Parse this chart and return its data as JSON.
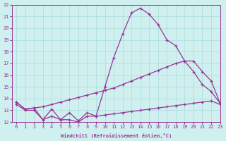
{
  "xlabel": "Windchill (Refroidissement éolien,°C)",
  "xlim": [
    -0.5,
    23
  ],
  "ylim": [
    12,
    22
  ],
  "yticks": [
    12,
    13,
    14,
    15,
    16,
    17,
    18,
    19,
    20,
    21,
    22
  ],
  "xticks": [
    0,
    1,
    2,
    3,
    4,
    5,
    6,
    7,
    8,
    9,
    10,
    11,
    12,
    13,
    14,
    15,
    16,
    17,
    18,
    19,
    20,
    21,
    22,
    23
  ],
  "bg_color": "#cff0ee",
  "grid_color": "#aadddd",
  "line_color": "#993399",
  "lines": [
    {
      "x": [
        0,
        1,
        2,
        3,
        4,
        5,
        6,
        7,
        8,
        9,
        10,
        11,
        12,
        13,
        14,
        15,
        16,
        17,
        18,
        19,
        20,
        21,
        22,
        23
      ],
      "y": [
        13.5,
        13.0,
        13.0,
        12.2,
        12.5,
        12.2,
        12.2,
        12.0,
        12.5,
        12.5,
        12.6,
        12.7,
        12.8,
        12.9,
        13.0,
        13.1,
        13.2,
        13.3,
        13.4,
        13.5,
        13.6,
        13.7,
        13.8,
        13.5
      ]
    },
    {
      "x": [
        0,
        1,
        2,
        3,
        4,
        5,
        6,
        7,
        8,
        9,
        10,
        11,
        12,
        13,
        14,
        15,
        16,
        17,
        18,
        19,
        20,
        21,
        22,
        23
      ],
      "y": [
        13.7,
        13.1,
        13.2,
        13.3,
        13.5,
        13.7,
        13.9,
        14.1,
        14.3,
        14.5,
        14.7,
        14.9,
        15.2,
        15.5,
        15.8,
        16.1,
        16.4,
        16.7,
        17.0,
        17.2,
        17.2,
        16.3,
        15.5,
        13.6
      ]
    },
    {
      "x": [
        0,
        1,
        2,
        3,
        4,
        5,
        6,
        7,
        8,
        9,
        10,
        11,
        12,
        13,
        14,
        15,
        16,
        17,
        18,
        19,
        20,
        21,
        22,
        23
      ],
      "y": [
        13.7,
        13.1,
        13.2,
        12.2,
        13.1,
        12.2,
        12.8,
        12.1,
        12.8,
        12.5,
        15.0,
        17.5,
        19.5,
        21.3,
        21.7,
        21.2,
        20.3,
        19.0,
        18.5,
        17.2,
        16.3,
        15.2,
        14.6,
        13.6
      ]
    }
  ]
}
